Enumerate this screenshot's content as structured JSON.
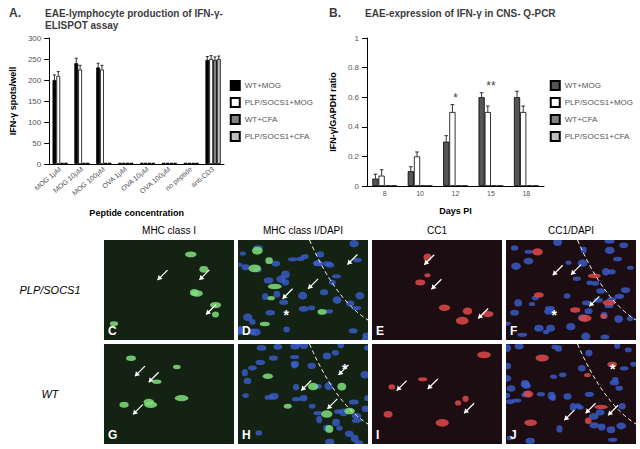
{
  "chart_data": [
    {
      "type": "bar",
      "panel_label": "A.",
      "title": "EAE-lymphocyte production of IFN-γ- ELISPOT assay",
      "x_label": "Peptide concentration",
      "y_label": "IFN-γ spots/well",
      "categories": [
        "MOG 1μM",
        "MOG 10μM",
        "MOG 100μM",
        "OVA 1μM",
        "OVA 10μM",
        "OVA 100μM",
        "no peptide",
        "anti-CD3"
      ],
      "series": [
        {
          "name": "WT+MOG",
          "color": "#000000",
          "values": [
            200,
            240,
            230,
            1,
            1,
            1,
            1,
            248
          ],
          "errors": [
            12,
            12,
            10,
            1,
            1,
            1,
            1,
            8
          ]
        },
        {
          "name": "PLP/SOCS1+MOG",
          "color": "#ffffff",
          "values": [
            210,
            225,
            225,
            1,
            1,
            1,
            1,
            250
          ],
          "errors": [
            10,
            10,
            10,
            1,
            1,
            1,
            1,
            8
          ]
        },
        {
          "name": "WT+CFA",
          "color": "#808080",
          "values": [
            1,
            1,
            1,
            1,
            1,
            1,
            1,
            248
          ],
          "errors": [
            1,
            1,
            1,
            1,
            1,
            1,
            1,
            7
          ]
        },
        {
          "name": "PLP/SOCS1+CFA",
          "color": "#c0c0c0",
          "values": [
            1,
            1,
            1,
            1,
            1,
            1,
            1,
            250
          ],
          "errors": [
            1,
            1,
            1,
            1,
            1,
            1,
            1,
            7
          ]
        }
      ],
      "ylim": [
        0,
        300
      ],
      "yticks": [
        0,
        50,
        100,
        150,
        200,
        250,
        300
      ],
      "grid": false,
      "legend": "right"
    },
    {
      "type": "bar",
      "panel_label": "B.",
      "title": "EAE-expression of IFN-γ in CNS- Q-PCR",
      "x_label": "Days PI",
      "y_label": "IFN-γ/GAPDH ratio",
      "categories": [
        "8",
        "10",
        "12",
        "15",
        "18"
      ],
      "series": [
        {
          "name": "WT+MOG",
          "color": "#555555",
          "values": [
            0.05,
            0.1,
            0.3,
            0.6,
            0.6
          ],
          "errors": [
            0.03,
            0.03,
            0.04,
            0.03,
            0.04
          ]
        },
        {
          "name": "PLP/SOCS1+MOG",
          "color": "#ffffff",
          "values": [
            0.07,
            0.2,
            0.5,
            0.5,
            0.5
          ],
          "errors": [
            0.04,
            0.03,
            0.05,
            0.04,
            0.04
          ]
        },
        {
          "name": "WT+CFA",
          "color": "#808080",
          "values": [
            0,
            0,
            0,
            0,
            0
          ],
          "errors": [
            0,
            0,
            0,
            0,
            0
          ]
        },
        {
          "name": "PLP/SOCS1+CFA",
          "color": "#c0c0c0",
          "values": [
            0,
            0,
            0,
            0,
            0
          ],
          "errors": [
            0,
            0,
            0,
            0,
            0
          ]
        }
      ],
      "annotations": [
        {
          "category": "12",
          "text": "*"
        },
        {
          "category": "15",
          "text": "**"
        }
      ],
      "ylim": [
        0,
        1
      ],
      "yticks": [
        0,
        0.2,
        0.4,
        0.6,
        0.8,
        1
      ],
      "grid": false,
      "legend": "right"
    }
  ],
  "panels": {
    "columns": [
      "MHC class I",
      "MHC class I/DAPI",
      "CC1",
      "CC1/DAPI"
    ],
    "rows": [
      {
        "label": "PLP/SOCS1",
        "letters": [
          "C",
          "D",
          "E",
          "F"
        ]
      },
      {
        "label": "WT",
        "letters": [
          "G",
          "H",
          "I",
          "J"
        ]
      }
    ],
    "asterisk": "*"
  }
}
